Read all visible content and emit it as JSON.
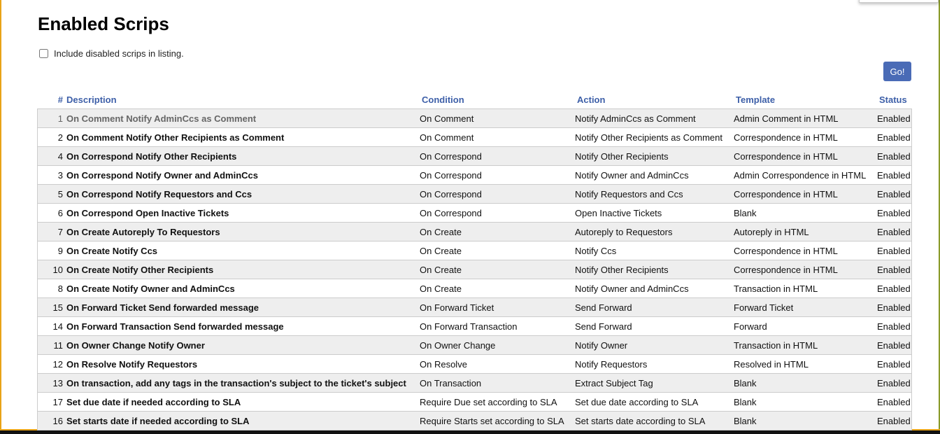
{
  "title": "Enabled Scrips",
  "include_disabled_label": "Include disabled scrips in listing.",
  "include_disabled_checked": false,
  "go_label": "Go!",
  "columns": [
    "#",
    "Description",
    "Condition",
    "Action",
    "Template",
    "Status"
  ],
  "rows": [
    {
      "id": "1",
      "description": "On Comment Notify AdminCcs as Comment",
      "condition": "On Comment",
      "action": "Notify AdminCcs as Comment",
      "template": "Admin Comment in HTML",
      "status": "Enabled"
    },
    {
      "id": "2",
      "description": "On Comment Notify Other Recipients as Comment",
      "condition": "On Comment",
      "action": "Notify Other Recipients as Comment",
      "template": "Correspondence in HTML",
      "status": "Enabled"
    },
    {
      "id": "4",
      "description": "On Correspond Notify Other Recipients",
      "condition": "On Correspond",
      "action": "Notify Other Recipients",
      "template": "Correspondence in HTML",
      "status": "Enabled"
    },
    {
      "id": "3",
      "description": "On Correspond Notify Owner and AdminCcs",
      "condition": "On Correspond",
      "action": "Notify Owner and AdminCcs",
      "template": "Admin Correspondence in HTML",
      "status": "Enabled"
    },
    {
      "id": "5",
      "description": "On Correspond Notify Requestors and Ccs",
      "condition": "On Correspond",
      "action": "Notify Requestors and Ccs",
      "template": "Correspondence in HTML",
      "status": "Enabled"
    },
    {
      "id": "6",
      "description": "On Correspond Open Inactive Tickets",
      "condition": "On Correspond",
      "action": "Open Inactive Tickets",
      "template": "Blank",
      "status": "Enabled"
    },
    {
      "id": "7",
      "description": "On Create Autoreply To Requestors",
      "condition": "On Create",
      "action": "Autoreply to Requestors",
      "template": "Autoreply in HTML",
      "status": "Enabled"
    },
    {
      "id": "9",
      "description": "On Create Notify Ccs",
      "condition": "On Create",
      "action": "Notify Ccs",
      "template": "Correspondence in HTML",
      "status": "Enabled"
    },
    {
      "id": "10",
      "description": "On Create Notify Other Recipients",
      "condition": "On Create",
      "action": "Notify Other Recipients",
      "template": "Correspondence in HTML",
      "status": "Enabled"
    },
    {
      "id": "8",
      "description": "On Create Notify Owner and AdminCcs",
      "condition": "On Create",
      "action": "Notify Owner and AdminCcs",
      "template": "Transaction in HTML",
      "status": "Enabled"
    },
    {
      "id": "15",
      "description": "On Forward Ticket Send forwarded message",
      "condition": "On Forward Ticket",
      "action": "Send Forward",
      "template": "Forward Ticket",
      "status": "Enabled"
    },
    {
      "id": "14",
      "description": "On Forward Transaction Send forwarded message",
      "condition": "On Forward Transaction",
      "action": "Send Forward",
      "template": "Forward",
      "status": "Enabled"
    },
    {
      "id": "11",
      "description": "On Owner Change Notify Owner",
      "condition": "On Owner Change",
      "action": "Notify Owner",
      "template": "Transaction in HTML",
      "status": "Enabled"
    },
    {
      "id": "12",
      "description": "On Resolve Notify Requestors",
      "condition": "On Resolve",
      "action": "Notify Requestors",
      "template": "Resolved in HTML",
      "status": "Enabled"
    },
    {
      "id": "13",
      "description": "On transaction, add any tags in the transaction's subject to the ticket's subject",
      "condition": "On Transaction",
      "action": "Extract Subject Tag",
      "template": "Blank",
      "status": "Enabled"
    },
    {
      "id": "17",
      "description": "Set due date if needed according to SLA",
      "condition": "Require Due set according to SLA",
      "action": "Set due date according to SLA",
      "template": "Blank",
      "status": "Enabled"
    },
    {
      "id": "16",
      "description": "Set starts date if needed according to SLA",
      "condition": "Require Starts set according to SLA",
      "action": "Set starts date according to SLA",
      "template": "Blank",
      "status": "Enabled"
    }
  ]
}
